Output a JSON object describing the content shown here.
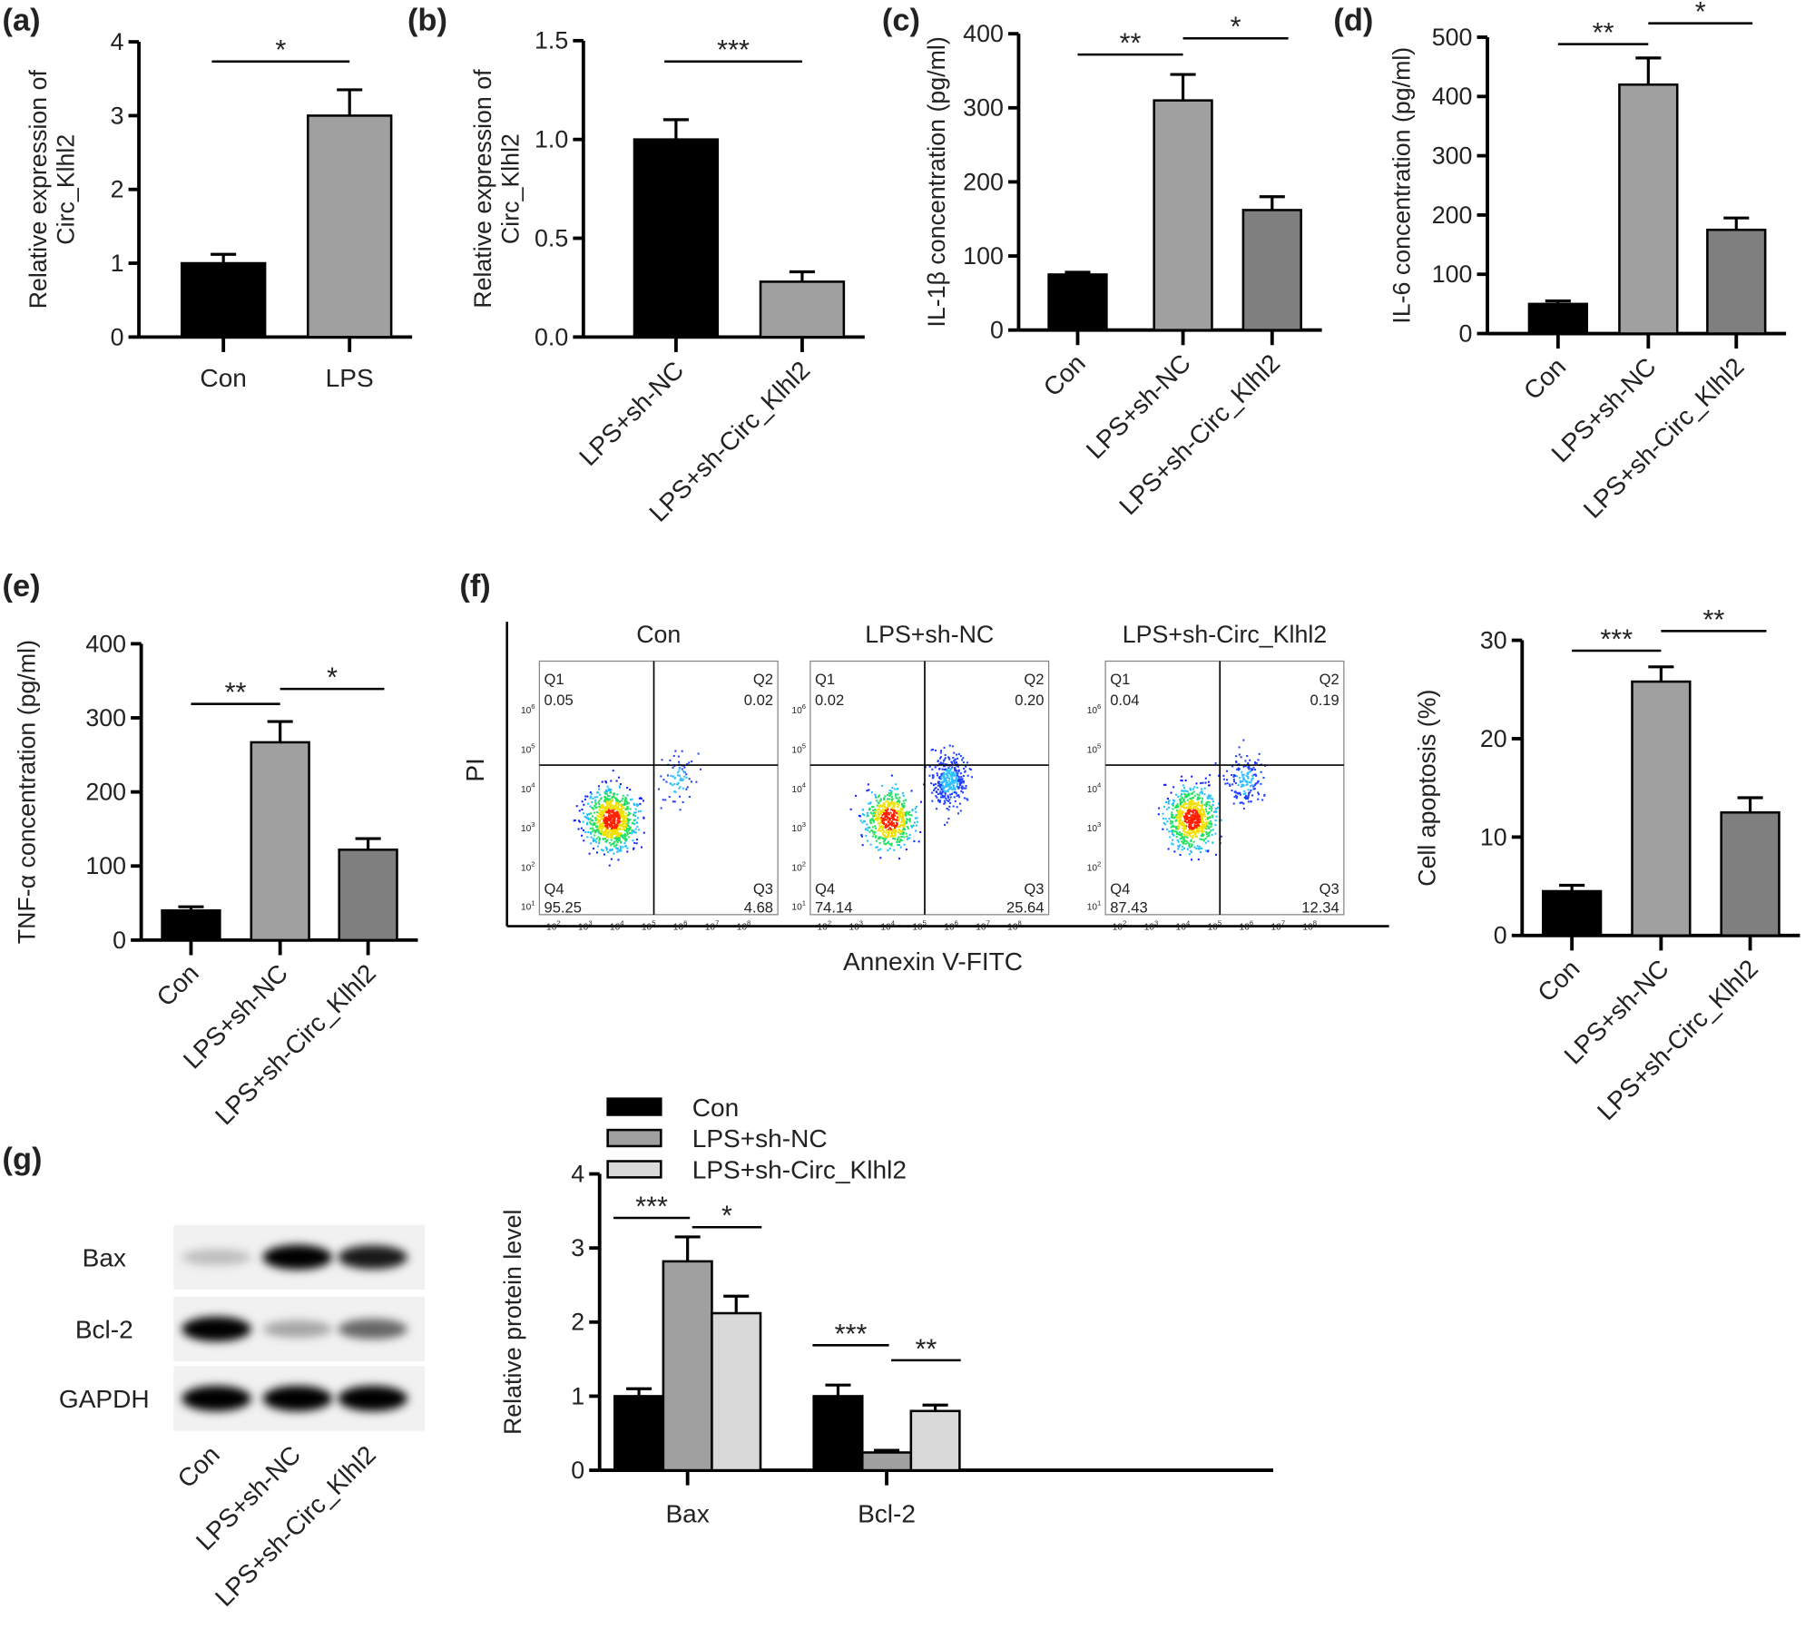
{
  "panel_labels": [
    "(a)",
    "(b)",
    "(c)",
    "(d)",
    "(e)",
    "(f)",
    "(g)"
  ],
  "colors": {
    "con": "#000000",
    "lps_sh_nc": "#a0a0a0",
    "lps_sh_circ": "#7f7f7f",
    "g_lps_sh_circ": "#d9d9d9"
  },
  "chart_data": [
    {
      "id": "a",
      "type": "bar",
      "categories": [
        "Con",
        "LPS"
      ],
      "values": [
        1.0,
        3.0
      ],
      "errors": [
        1.12,
        3.35
      ],
      "ylabel": [
        "Relative expression of",
        "Circ_Klhl2"
      ],
      "ylim": [
        0,
        4
      ],
      "yticks": [
        "0",
        "1",
        "2",
        "3",
        "4"
      ],
      "significance": [
        {
          "from": 0,
          "to": 1,
          "label": "*"
        }
      ]
    },
    {
      "id": "b",
      "type": "bar",
      "categories": [
        "LPS+sh-NC",
        "LPS+sh-Circ_Klhl2"
      ],
      "values": [
        1.0,
        0.28
      ],
      "errors": [
        1.1,
        0.33
      ],
      "ylabel": [
        "Relative expression of",
        "Circ_Klhl2"
      ],
      "ylim": [
        0,
        1.5
      ],
      "yticks": [
        "0.0",
        "0.5",
        "1.0",
        "1.5"
      ],
      "significance": [
        {
          "from": 0,
          "to": 1,
          "label": "***"
        }
      ]
    },
    {
      "id": "c",
      "type": "bar",
      "categories": [
        "Con",
        "LPS+sh-NC",
        "LPS+sh-Circ_Klhl2"
      ],
      "values": [
        75,
        310,
        162
      ],
      "errors": [
        78,
        345,
        180
      ],
      "ylabel": [
        "IL-1β concentration (pg/ml)"
      ],
      "ylim": [
        0,
        400
      ],
      "yticks": [
        "0",
        "100",
        "200",
        "300",
        "400"
      ],
      "significance": [
        {
          "from": 0,
          "to": 1,
          "label": "**"
        },
        {
          "from": 1,
          "to": 2,
          "label": "*"
        }
      ]
    },
    {
      "id": "d",
      "type": "bar",
      "categories": [
        "Con",
        "LPS+sh-NC",
        "LPS+sh-Circ_Klhl2"
      ],
      "values": [
        50,
        420,
        175
      ],
      "errors": [
        55,
        465,
        195
      ],
      "ylabel": [
        "IL-6 concentration (pg/ml)"
      ],
      "ylim": [
        0,
        500
      ],
      "yticks": [
        "0",
        "100",
        "200",
        "300",
        "400",
        "500"
      ],
      "significance": [
        {
          "from": 0,
          "to": 1,
          "label": "**"
        },
        {
          "from": 1,
          "to": 2,
          "label": "*"
        }
      ]
    },
    {
      "id": "e",
      "type": "bar",
      "categories": [
        "Con",
        "LPS+sh-NC",
        "LPS+sh-Circ_Klhl2"
      ],
      "values": [
        40,
        267,
        122
      ],
      "errors": [
        45,
        295,
        137
      ],
      "ylabel": [
        "TNF-α concentration (pg/ml)"
      ],
      "ylim": [
        0,
        400
      ],
      "yticks": [
        "0",
        "100",
        "200",
        "300",
        "400"
      ],
      "significance": [
        {
          "from": 0,
          "to": 1,
          "label": "**"
        },
        {
          "from": 1,
          "to": 2,
          "label": "*"
        }
      ]
    },
    {
      "id": "f",
      "type": "bar",
      "categories": [
        "Con",
        "LPS+sh-NC",
        "LPS+sh-Circ_Klhl2"
      ],
      "values": [
        4.5,
        25.8,
        12.5
      ],
      "errors": [
        5.1,
        27.3,
        14.0
      ],
      "ylabel": [
        "Cell apoptosis (%)"
      ],
      "ylim": [
        0,
        30
      ],
      "yticks": [
        "0",
        "10",
        "20",
        "30"
      ],
      "significance": [
        {
          "from": 0,
          "to": 1,
          "label": "***"
        },
        {
          "from": 1,
          "to": 2,
          "label": "**"
        }
      ]
    },
    {
      "id": "g",
      "type": "bar",
      "categories": [
        "Bax",
        "Bcl-2"
      ],
      "series": [
        {
          "name": "Con",
          "values": [
            1.0,
            1.0
          ],
          "errors": [
            1.1,
            1.15
          ]
        },
        {
          "name": "LPS+sh-NC",
          "values": [
            2.82,
            0.24
          ],
          "errors": [
            3.15,
            0.27
          ]
        },
        {
          "name": "LPS+sh-Circ_Klhl2",
          "values": [
            2.12,
            0.8
          ],
          "errors": [
            2.35,
            0.88
          ]
        }
      ],
      "ylabel": [
        "Relative protein level"
      ],
      "ylim": [
        0,
        4
      ],
      "yticks": [
        "0",
        "1",
        "2",
        "3",
        "4"
      ],
      "legend": "top",
      "significance": [
        {
          "group": 0,
          "from": 0,
          "to": 1,
          "label": "***"
        },
        {
          "group": 0,
          "from": 1,
          "to": 2,
          "label": "*"
        },
        {
          "group": 1,
          "from": 0,
          "to": 1,
          "label": "***"
        },
        {
          "group": 1,
          "from": 1,
          "to": 2,
          "label": "**"
        }
      ]
    }
  ],
  "flow_cytometry": {
    "xlabel": "Annexin V-FITC",
    "ylabel": "PI",
    "x_tick_exponents": [
      "2",
      "3",
      "4",
      "5",
      "6",
      "7",
      "8"
    ],
    "y_tick_exponents": [
      "1",
      "2",
      "3",
      "4",
      "5",
      "6"
    ],
    "tick_base": "10",
    "plots": [
      {
        "title": "Con",
        "Q1": "0.05",
        "Q2": "0.02",
        "Q3": "4.68",
        "Q4": "95.25"
      },
      {
        "title": "LPS+sh-NC",
        "Q1": "0.02",
        "Q2": "0.20",
        "Q3": "25.64",
        "Q4": "74.14"
      },
      {
        "title": "LPS+sh-Circ_Klhl2",
        "Q1": "0.04",
        "Q2": "0.19",
        "Q3": "12.34",
        "Q4": "87.43"
      }
    ],
    "quadrant_names": [
      "Q1",
      "Q2",
      "Q3",
      "Q4"
    ]
  },
  "western_blot": {
    "rows": [
      {
        "label": "Bax",
        "intensity": [
          0.2,
          0.95,
          0.85
        ]
      },
      {
        "label": "Bcl-2",
        "intensity": [
          0.95,
          0.3,
          0.55
        ]
      },
      {
        "label": "GAPDH",
        "intensity": [
          1,
          1,
          1
        ]
      }
    ],
    "lanes": [
      "Con",
      "LPS+sh-NC",
      "LPS+sh-Circ_Klhl2"
    ]
  }
}
